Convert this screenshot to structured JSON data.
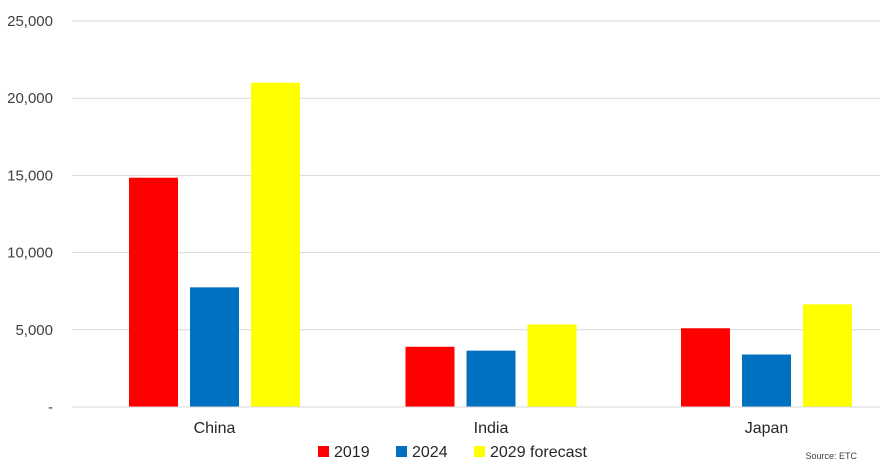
{
  "chart_data": {
    "type": "bar",
    "categories": [
      "China",
      "India",
      "Japan"
    ],
    "series": [
      {
        "name": "2019",
        "color": "#ff0000",
        "values": [
          14850,
          3900,
          5100
        ]
      },
      {
        "name": "2024",
        "color": "#0070c0",
        "values": [
          7750,
          3650,
          3400
        ]
      },
      {
        "name": "2029 forecast",
        "color": "#ffff00",
        "values": [
          21000,
          5350,
          6650
        ]
      }
    ],
    "yticks": [
      "-",
      "5,000",
      "10,000",
      "15,000",
      "20,000",
      "25,000"
    ],
    "ylim": [
      0,
      25000
    ],
    "grid": true,
    "legend_position": "bottom-center",
    "source": "Source: ETC"
  }
}
